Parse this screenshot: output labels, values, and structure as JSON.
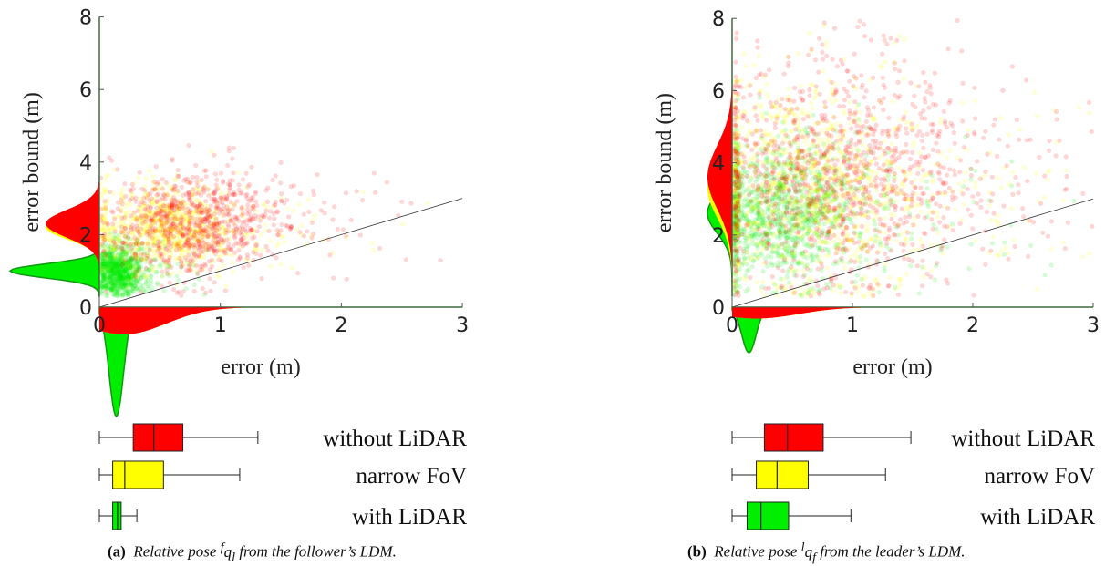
{
  "colors": {
    "without_lidar": "#ff0000",
    "narrow_fov": "#ffff00",
    "with_lidar": "#00ee00",
    "median_line": "#d05a00"
  },
  "chart_data": [
    {
      "type": "scatter",
      "panel": "a",
      "xlabel": "error (m)",
      "ylabel": "error bound (m)",
      "xlim": [
        0,
        3
      ],
      "ylim": [
        0,
        8
      ],
      "xticks": [
        "0",
        "1",
        "2",
        "3"
      ],
      "yticks": [
        "0",
        "2",
        "4",
        "6",
        "8"
      ],
      "reference_line": {
        "slope": 1
      },
      "clusters": [
        {
          "series": "without LiDAR",
          "center": [
            0.75,
            2.3
          ],
          "spread": [
            0.35,
            0.7
          ]
        },
        {
          "series": "narrow FoV",
          "center": [
            0.55,
            2.2
          ],
          "spread": [
            0.3,
            0.6
          ]
        },
        {
          "series": "with LiDAR",
          "center": [
            0.15,
            1.0
          ],
          "spread": [
            0.1,
            0.35
          ]
        }
      ],
      "boxplots": [
        {
          "label": "without LiDAR",
          "series": "without_lidar",
          "whisker_low": 0.0,
          "q1": 0.28,
          "median": 0.45,
          "q3": 0.69,
          "whisker_high": 1.31
        },
        {
          "label": "narrow FoV",
          "series": "narrow_fov",
          "whisker_low": 0.0,
          "q1": 0.11,
          "median": 0.21,
          "q3": 0.53,
          "whisker_high": 1.16
        },
        {
          "label": "with LiDAR",
          "series": "with_lidar",
          "whisker_low": 0.0,
          "q1": 0.11,
          "median": 0.15,
          "q3": 0.18,
          "whisker_high": 0.31
        }
      ],
      "caption_tag": "(a)",
      "caption_text_before": "Relative pose ",
      "caption_sup": "f",
      "caption_var": "q",
      "caption_sub": "l",
      "caption_text_after": " from the follower’s LDM."
    },
    {
      "type": "scatter",
      "panel": "b",
      "xlabel": "error (m)",
      "ylabel": "error bound (m)",
      "xlim": [
        0,
        3
      ],
      "ylim": [
        0,
        8
      ],
      "xticks": [
        "0",
        "1",
        "2",
        "3"
      ],
      "yticks": [
        "0",
        "2",
        "4",
        "6",
        "8"
      ],
      "reference_line": {
        "slope": 1
      },
      "clusters": [
        {
          "series": "without LiDAR",
          "center": [
            0.8,
            3.6
          ],
          "spread": [
            0.6,
            1.6
          ]
        },
        {
          "series": "narrow FoV",
          "center": [
            0.6,
            3.3
          ],
          "spread": [
            0.5,
            1.5
          ]
        },
        {
          "series": "with LiDAR",
          "center": [
            0.35,
            2.6
          ],
          "spread": [
            0.35,
            1.0
          ]
        }
      ],
      "boxplots": [
        {
          "label": "without LiDAR",
          "series": "without_lidar",
          "whisker_low": 0.0,
          "q1": 0.28,
          "median": 0.48,
          "q3": 0.79,
          "whisker_high": 1.55
        },
        {
          "label": "narrow FoV",
          "series": "narrow_fov",
          "whisker_low": 0.0,
          "q1": 0.21,
          "median": 0.39,
          "q3": 0.66,
          "whisker_high": 1.33
        },
        {
          "label": "with LiDAR",
          "series": "with_lidar",
          "whisker_low": 0.0,
          "q1": 0.13,
          "median": 0.25,
          "q3": 0.49,
          "whisker_high": 1.03
        }
      ],
      "caption_tag": "(b)",
      "caption_text_before": "Relative pose ",
      "caption_sup": "l",
      "caption_var": "q",
      "caption_sub": "f",
      "caption_text_after": " from the leader’s LDM."
    }
  ]
}
